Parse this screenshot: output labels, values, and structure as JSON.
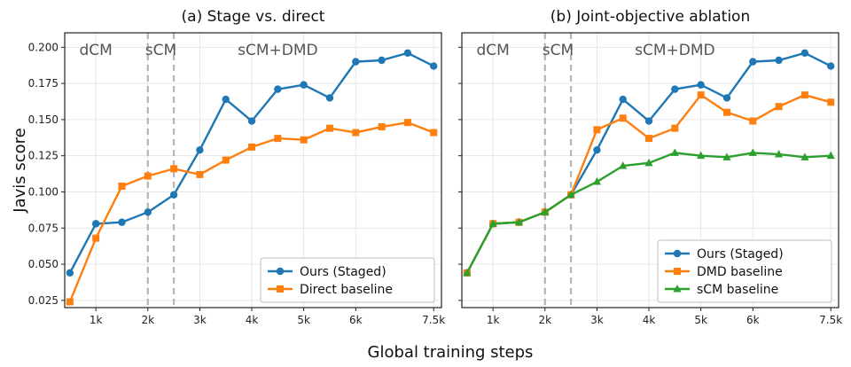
{
  "figure": {
    "xlabel": "Global training steps",
    "ylabel": "Javis score"
  },
  "chart_data": [
    {
      "type": "line",
      "title": "(a) Stage vs. direct",
      "x": [
        500,
        1000,
        1500,
        2000,
        2500,
        3000,
        3500,
        4000,
        4500,
        5000,
        5500,
        6000,
        6500,
        7000,
        7500
      ],
      "xticks": [
        1000,
        2000,
        3000,
        4000,
        5000,
        6000,
        7500
      ],
      "xtick_labels": [
        "1k",
        "2k",
        "3k",
        "4k",
        "5k",
        "6k",
        "7.5k"
      ],
      "xlim": [
        400,
        7650
      ],
      "ylim": [
        0.02,
        0.21
      ],
      "yticks": [
        0.025,
        0.05,
        0.075,
        0.1,
        0.125,
        0.15,
        0.175,
        0.2
      ],
      "ytick_labels": [
        "0.025",
        "0.050",
        "0.075",
        "0.100",
        "0.125",
        "0.150",
        "0.175",
        "0.200"
      ],
      "grid": true,
      "legend": "bottom-right",
      "phase_lines": [
        2000,
        2500
      ],
      "phase_labels": [
        {
          "text": "dCM",
          "x": 1000
        },
        {
          "text": "sCM",
          "x": 2250
        },
        {
          "text": "sCM+DMD",
          "x": 4500
        }
      ],
      "series": [
        {
          "name": "Ours (Staged)",
          "color": "#1f77b4",
          "marker": "circle",
          "values": [
            0.044,
            0.078,
            0.079,
            0.086,
            0.098,
            0.129,
            0.164,
            0.149,
            0.171,
            0.174,
            0.165,
            0.19,
            0.191,
            0.196,
            0.187
          ]
        },
        {
          "name": "Direct baseline",
          "color": "#ff7f0e",
          "marker": "square",
          "values": [
            0.024,
            0.068,
            0.104,
            0.111,
            0.116,
            0.112,
            0.122,
            0.131,
            0.137,
            0.136,
            0.144,
            0.141,
            0.145,
            0.148,
            0.141
          ]
        }
      ]
    },
    {
      "type": "line",
      "title": "(b) Joint-objective ablation",
      "x": [
        500,
        1000,
        1500,
        2000,
        2500,
        3000,
        3500,
        4000,
        4500,
        5000,
        5500,
        6000,
        6500,
        7000,
        7500
      ],
      "xticks": [
        1000,
        2000,
        3000,
        4000,
        5000,
        6000,
        7500
      ],
      "xtick_labels": [
        "1k",
        "2k",
        "3k",
        "4k",
        "5k",
        "6k",
        "7.5k"
      ],
      "xlim": [
        400,
        7650
      ],
      "ylim": [
        0.02,
        0.21
      ],
      "grid": true,
      "legend": "bottom-right",
      "phase_lines": [
        2000,
        2500
      ],
      "phase_labels": [
        {
          "text": "dCM",
          "x": 1000
        },
        {
          "text": "sCM",
          "x": 2250
        },
        {
          "text": "sCM+DMD",
          "x": 4500
        }
      ],
      "series": [
        {
          "name": "Ours (Staged)",
          "color": "#1f77b4",
          "marker": "circle",
          "values": [
            0.044,
            0.078,
            0.079,
            0.086,
            0.098,
            0.129,
            0.164,
            0.149,
            0.171,
            0.174,
            0.165,
            0.19,
            0.191,
            0.196,
            0.187
          ]
        },
        {
          "name": "DMD baseline",
          "color": "#ff7f0e",
          "marker": "square",
          "values": [
            0.044,
            0.078,
            0.079,
            0.086,
            0.098,
            0.143,
            0.151,
            0.137,
            0.144,
            0.167,
            0.155,
            0.149,
            0.159,
            0.167,
            0.162
          ]
        },
        {
          "name": "sCM baseline",
          "color": "#2ca02c",
          "marker": "triangle",
          "values": [
            0.044,
            0.078,
            0.079,
            0.086,
            0.098,
            0.107,
            0.118,
            0.12,
            0.127,
            0.125,
            0.124,
            0.127,
            0.126,
            0.124,
            0.125
          ]
        }
      ]
    }
  ]
}
